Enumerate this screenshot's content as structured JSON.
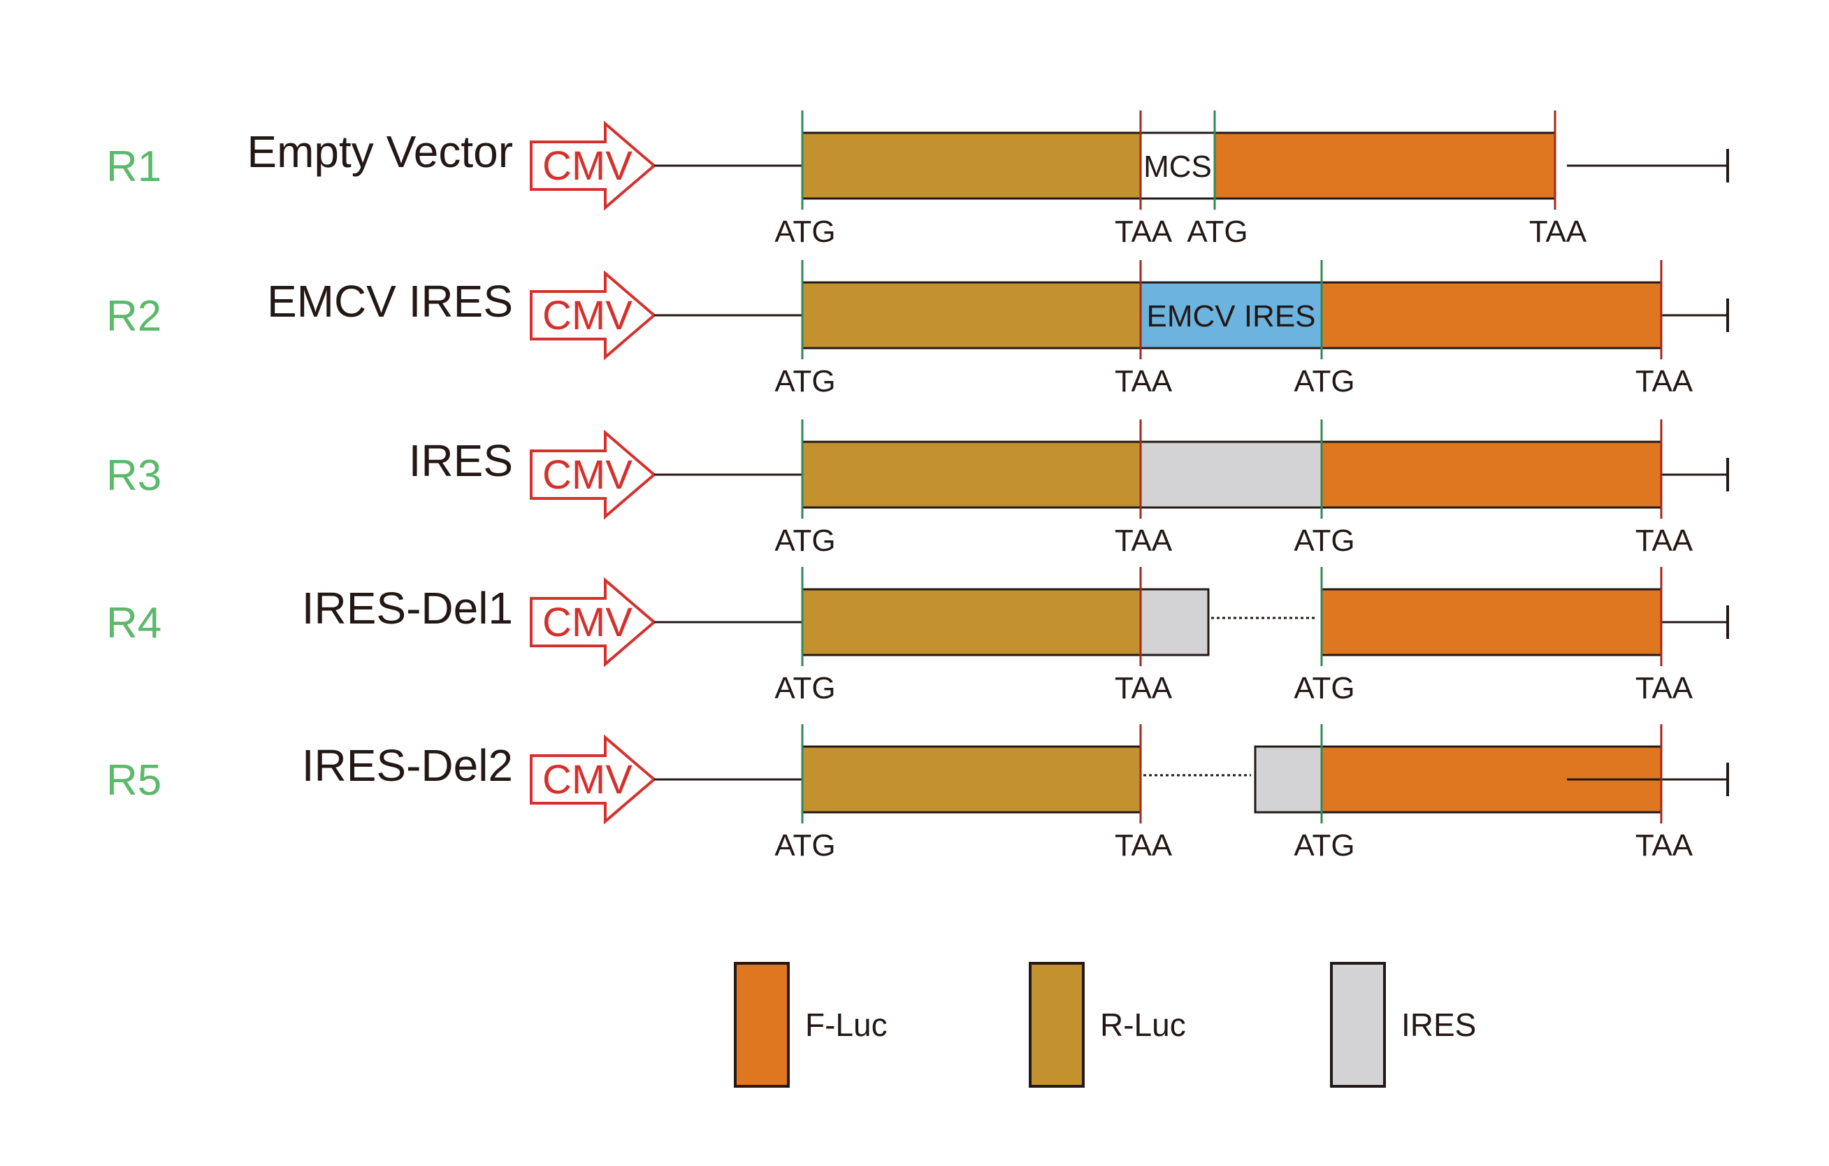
{
  "colors": {
    "f_luc": "#de7720",
    "r_luc": "#c3922e",
    "ires": "#d3d3d5",
    "emcv_ires": "#6cb4df",
    "mcs": "#ffffff",
    "start_marker": "#2e8a57",
    "stop_marker": "#a02a20",
    "promoter": "#d6302d",
    "row_id": "#5cb86a"
  },
  "promoter": {
    "label": "CMV"
  },
  "constructs": [
    {
      "id": "R1",
      "name": "Empty Vector",
      "middle": {
        "type": "mcs",
        "label": "MCS"
      },
      "sites": {
        "rluc_start": "ATG",
        "rluc_stop": "TAA",
        "fluc_start": "ATG",
        "fluc_stop": "TAA"
      }
    },
    {
      "id": "R2",
      "name": "EMCV IRES",
      "middle": {
        "type": "emcv_ires",
        "label": "EMCV IRES"
      },
      "sites": {
        "rluc_start": "ATG",
        "rluc_stop": "TAA",
        "fluc_start": "ATG",
        "fluc_stop": "TAA"
      }
    },
    {
      "id": "R3",
      "name": "IRES",
      "middle": {
        "type": "ires",
        "label": ""
      },
      "sites": {
        "rluc_start": "ATG",
        "rluc_stop": "TAA",
        "fluc_start": "ATG",
        "fluc_stop": "TAA"
      }
    },
    {
      "id": "R4",
      "name": "IRES-Del1",
      "middle": {
        "type": "ires_del1",
        "label": ""
      },
      "sites": {
        "rluc_start": "ATG",
        "rluc_stop": "TAA",
        "fluc_start": "ATG",
        "fluc_stop": "TAA"
      }
    },
    {
      "id": "R5",
      "name": "IRES-Del2",
      "middle": {
        "type": "ires_del2",
        "label": ""
      },
      "sites": {
        "rluc_start": "ATG",
        "rluc_stop": "TAA",
        "fluc_start": "ATG",
        "fluc_stop": "TAA"
      }
    }
  ],
  "legend": [
    {
      "key": "f_luc",
      "label": "F-Luc"
    },
    {
      "key": "r_luc",
      "label": "R-Luc"
    },
    {
      "key": "ires",
      "label": "IRES"
    }
  ]
}
